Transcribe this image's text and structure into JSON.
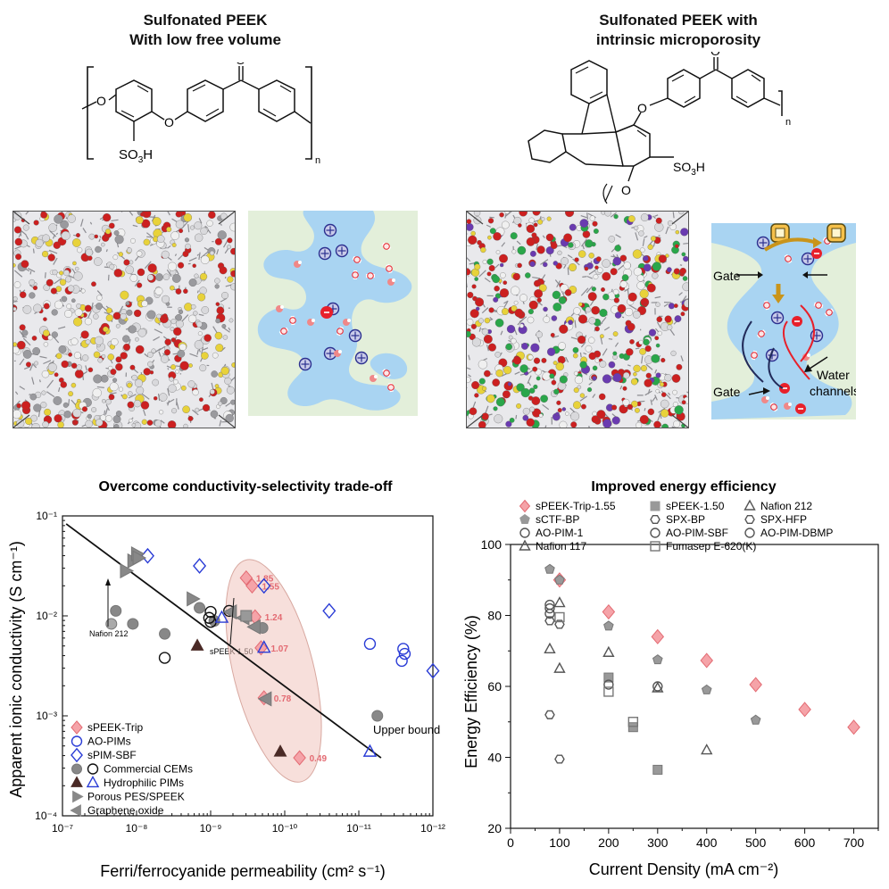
{
  "top_left": {
    "title_line1": "Sulfonated PEEK",
    "title_line2": "With low free volume",
    "so3h": "SO",
    "so3h_sub": "3",
    "so3h_end": "H",
    "n": "n",
    "o_label": "O"
  },
  "top_right": {
    "title_line1": "Sulfonated PEEK with",
    "title_line2": "intrinsic microporosity",
    "so3h": "SO",
    "so3h_sub": "3",
    "so3h_end": "H",
    "n": "n",
    "o_label": "O",
    "gate_top": "Gate",
    "gate_bottom": "Gate",
    "water_channels_1": "Water",
    "water_channels_2": "channels"
  },
  "colors": {
    "water": "#a9d4f2",
    "matrix": "#e3efda",
    "cation_ring": "#2b2f8f",
    "anion": "#e8202a",
    "speek_trip": "#f5a3a8",
    "grey_marker": "#888888",
    "dark_marker": "#4a2a26",
    "blue": "#2a3cd6",
    "ellipse": "#f1c4bd"
  },
  "left_chart": {
    "title": "Overcome conductivity-selectivity trade-off",
    "ylabel": "Apparent ionic conductivity (S cm⁻¹)",
    "xlabel": "Ferri/ferrocyanide permeability (cm² s⁻¹)",
    "upper_bound": "Upper bound",
    "nafion212": "Nafion 212",
    "speek150": "sPEEK 1.50",
    "ytick_labels": [
      "10⁻¹",
      "10⁻²",
      "10⁻³",
      "10⁻⁴"
    ],
    "xtick_labels": [
      "10⁻⁷",
      "10⁻⁸",
      "10⁻⁹",
      "10⁻¹⁰",
      "10⁻¹¹",
      "10⁻¹²"
    ],
    "legend": [
      "sPEEK-Trip",
      "AO-PIMs",
      "sPIM-SBF",
      "Commercial CEMs",
      "Hydrophilic PIMs",
      "Porous PES/SPEEK",
      "Graphene oxide"
    ]
  },
  "right_chart": {
    "title": "Improved energy efficiency",
    "ylabel": "Energy Efficiency (%)",
    "xlabel": "Current Density (mA cm⁻²)",
    "legend": [
      "sPEEK-Trip-1.55",
      "sPEEK-1.50",
      "Nafion 212",
      "sCTF-BP",
      "SPX-BP",
      "SPX-HFP",
      "AO-PIM-1",
      "AO-PIM-SBF",
      "AO-PIM-DBMP",
      "Nafion 117",
      "Fumasep E-620(K)"
    ],
    "ytick_labels": [
      "20",
      "40",
      "60",
      "80",
      "100"
    ],
    "xtick_labels": [
      "0",
      "100",
      "200",
      "300",
      "400",
      "500",
      "600",
      "700"
    ]
  },
  "chart_data": [
    {
      "type": "scatter",
      "title": "Overcome conductivity-selectivity trade-off",
      "xlabel": "Ferri/ferrocyanide permeability (cm2 s-1)",
      "ylabel": "Apparent ionic conductivity (S cm-1)",
      "x_scale": "log, reversed",
      "xlim_exp": [
        -7,
        -12
      ],
      "y_scale": "log",
      "ylim_exp": [
        -4,
        -1
      ],
      "upper_bound_line": [
        [
          -7.05,
          -1.08
        ],
        [
          -11.3,
          -3.42
        ]
      ],
      "ellipse_center": [
        -9.85,
        -2.55
      ],
      "series": [
        {
          "name": "sPEEK-Trip",
          "marker": "diamond",
          "color": "#f5a3a8",
          "points": [
            {
              "lx": -9.48,
              "ly": -1.62,
              "label": "1.85"
            },
            {
              "lx": -9.56,
              "ly": -1.7,
              "label": "1.55"
            },
            {
              "lx": -9.6,
              "ly": -2.01,
              "label": "1.24"
            },
            {
              "lx": -9.68,
              "ly": -2.32,
              "label": "1.07"
            },
            {
              "lx": -9.72,
              "ly": -2.82,
              "label": "0.78"
            },
            {
              "lx": -10.2,
              "ly": -3.42,
              "label": "0.49"
            }
          ]
        },
        {
          "name": "AO-PIMs",
          "marker": "circle-open",
          "color": "#2a3cd6",
          "points": [
            {
              "lx": -11.15,
              "ly": -2.28
            },
            {
              "lx": -11.6,
              "ly": -2.33
            },
            {
              "lx": -11.62,
              "ly": -2.38
            },
            {
              "lx": -11.58,
              "ly": -2.45
            }
          ]
        },
        {
          "name": "sPIM-SBF",
          "marker": "diamond-open",
          "color": "#2a3cd6",
          "points": [
            {
              "lx": -8.15,
              "ly": -1.4
            },
            {
              "lx": -8.85,
              "ly": -1.5
            },
            {
              "lx": -9.72,
              "ly": -1.7
            },
            {
              "lx": -10.6,
              "ly": -1.95
            },
            {
              "lx": -12.0,
              "ly": -2.55
            }
          ]
        },
        {
          "name": "Commercial CEMs",
          "marker": "circle",
          "color": "#888888",
          "points": [
            {
              "lx": -7.72,
              "ly": -1.95
            },
            {
              "lx": -7.95,
              "ly": -2.08
            },
            {
              "lx": -8.38,
              "ly": -2.18
            },
            {
              "lx": -8.85,
              "ly": -1.92
            },
            {
              "lx": -9.05,
              "ly": -2.05
            },
            {
              "lx": -9.7,
              "ly": -2.12
            },
            {
              "lx": -11.25,
              "ly": -3.0
            }
          ]
        },
        {
          "name": "Commercial CEMs (open)",
          "marker": "circle-open",
          "color": "#111111",
          "points": [
            {
              "lx": -8.38,
              "ly": -2.42
            },
            {
              "lx": -8.98,
              "ly": -2.02
            },
            {
              "lx": -9.0,
              "ly": -2.06
            },
            {
              "lx": -9.0,
              "ly": -1.96
            },
            {
              "lx": -9.25,
              "ly": -1.95
            }
          ]
        },
        {
          "name": "Hydrophilic PIMs",
          "marker": "triangle",
          "color": "#4a2a26",
          "points": [
            {
              "lx": -8.82,
              "ly": -2.3
            },
            {
              "lx": -9.94,
              "ly": -3.36
            }
          ]
        },
        {
          "name": "Hydrophilic PIMs (open)",
          "marker": "triangle-open",
          "color": "#2a3cd6",
          "points": [
            {
              "lx": -9.15,
              "ly": -2.02
            },
            {
              "lx": -9.72,
              "ly": -2.32
            },
            {
              "lx": -11.15,
              "ly": -3.36
            }
          ]
        },
        {
          "name": "Porous PES/SPEEK",
          "marker": "triangle-right",
          "color": "#888888",
          "points": [
            {
              "lx": -7.85,
              "ly": -1.55
            },
            {
              "lx": -7.95,
              "ly": -1.45
            },
            {
              "lx": -8.0,
              "ly": -1.38
            },
            {
              "lx": -8.02,
              "ly": -1.42
            },
            {
              "lx": -8.75,
              "ly": -1.83
            }
          ]
        },
        {
          "name": "Graphene oxide",
          "marker": "triangle-left",
          "color": "#888888",
          "points": [
            {
              "lx": -9.28,
              "ly": -1.96
            },
            {
              "lx": -9.45,
              "ly": -2.02
            },
            {
              "lx": -9.6,
              "ly": -2.11
            },
            {
              "lx": -9.75,
              "ly": -2.83
            }
          ]
        },
        {
          "name": "Nafion 212",
          "marker": "circle",
          "color": "#aaaaaa",
          "points": [
            {
              "lx": -7.66,
              "ly": -2.08
            }
          ]
        },
        {
          "name": "sPEEK 1.50",
          "marker": "square",
          "color": "#999999",
          "points": [
            {
              "lx": -9.48,
              "ly": -2.0
            }
          ]
        }
      ]
    },
    {
      "type": "scatter",
      "title": "Improved energy efficiency",
      "xlabel": "Current Density (mA cm-2)",
      "ylabel": "Energy Efficiency (%)",
      "xlim": [
        0,
        750
      ],
      "ylim": [
        20,
        100
      ],
      "series": [
        {
          "name": "sPEEK-Trip-1.55",
          "marker": "diamond",
          "color": "#f5a3a8",
          "points": [
            [
              100,
              90
            ],
            [
              200,
              81
            ],
            [
              300,
              74
            ],
            [
              400,
              67.3
            ],
            [
              500,
              60.5
            ],
            [
              600,
              53.5
            ],
            [
              700,
              48.5
            ]
          ]
        },
        {
          "name": "sPEEK-1.50",
          "marker": "square",
          "color": "#999999",
          "points": [
            [
              200,
              62.5
            ],
            [
              250,
              48.5
            ],
            [
              300,
              36.5
            ]
          ]
        },
        {
          "name": "Nafion 212",
          "marker": "triangle-open",
          "color": "#555555",
          "points": [
            [
              80,
              70.5
            ],
            [
              100,
              83.5
            ],
            [
              100,
              65
            ],
            [
              200,
              69.5
            ],
            [
              400,
              42
            ]
          ]
        },
        {
          "name": "sCTF-BP",
          "marker": "pentagon",
          "color": "#999999",
          "points": [
            [
              80,
              93
            ],
            [
              100,
              90
            ],
            [
              200,
              77
            ],
            [
              300,
              67.5
            ],
            [
              400,
              59
            ],
            [
              500,
              50.5
            ]
          ]
        },
        {
          "name": "SPX-BP",
          "marker": "hexagon-open",
          "color": "#555555",
          "points": [
            [
              80,
              52
            ],
            [
              100,
              39.5
            ]
          ]
        },
        {
          "name": "SPX-HFP",
          "marker": "hexagon-open",
          "color": "#555555",
          "points": [
            [
              80,
              78.5
            ],
            [
              100,
              77.5
            ]
          ]
        },
        {
          "name": "AO-PIM-1",
          "marker": "circle-open",
          "color": "#555555",
          "points": [
            [
              80,
              80.5
            ],
            [
              200,
              60.5
            ],
            [
              300,
              60
            ]
          ]
        },
        {
          "name": "AO-PIM-SBF",
          "marker": "circle-open",
          "color": "#555555",
          "points": [
            [
              80,
              83
            ]
          ]
        },
        {
          "name": "AO-PIM-DBMP",
          "marker": "circle-open",
          "color": "#555555",
          "points": [
            [
              80,
              82
            ]
          ]
        },
        {
          "name": "Nafion 117",
          "marker": "triangle-open",
          "color": "#555555",
          "points": [
            [
              300,
              59.5
            ]
          ]
        },
        {
          "name": "Fumasep E-620(K)",
          "marker": "square-open",
          "color": "#777777",
          "points": [
            [
              100,
              79.5
            ],
            [
              200,
              58.5
            ],
            [
              250,
              50
            ]
          ]
        }
      ]
    }
  ]
}
